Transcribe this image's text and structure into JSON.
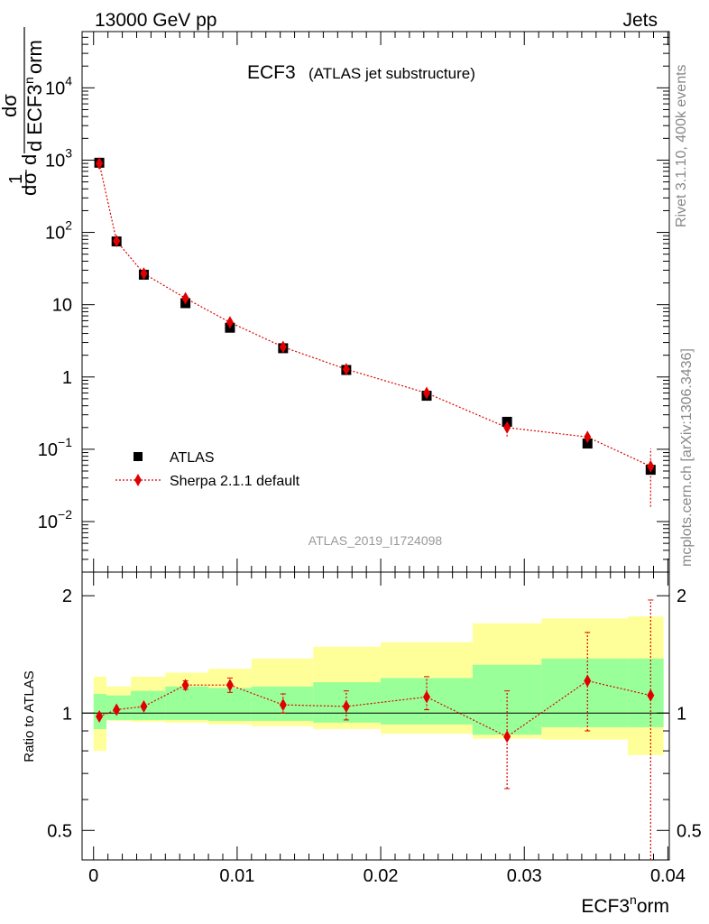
{
  "header": {
    "left": "13000 GeV pp",
    "right": "Jets"
  },
  "side": {
    "rivet": "Rivet 3.1.10,  400k events",
    "mcplots": "mcplots.cern.ch [arXiv:1306.3436]"
  },
  "chart_data": [
    {
      "type": "scatter",
      "panel": "main",
      "title": "ECF3",
      "subtitle": "(ATLAS jet substructure)",
      "watermark": "ATLAS_2019_I1724098",
      "xlabel": "ECF3^norm",
      "ylabel": "1/σ dσ/d ECF3^norm",
      "yscale": "log",
      "xlim": [
        -0.0008,
        0.0401
      ],
      "ylim": [
        0.002,
        60000
      ],
      "y_ticks": [
        {
          "v": 0.01,
          "base": "10",
          "exp": "−2"
        },
        {
          "v": 0.1,
          "base": "10",
          "exp": "−1"
        },
        {
          "v": 1,
          "base": "1",
          "exp": ""
        },
        {
          "v": 10,
          "base": "10",
          "exp": ""
        },
        {
          "v": 100,
          "base": "10",
          "exp": "2"
        },
        {
          "v": 1000,
          "base": "10",
          "exp": "3"
        },
        {
          "v": 10000,
          "base": "10",
          "exp": "4"
        }
      ],
      "legend_position": "lower-left",
      "series": [
        {
          "name": "ATLAS",
          "color": "#000000",
          "marker": "square",
          "x": [
            0.0004,
            0.0016,
            0.0035,
            0.0064,
            0.0095,
            0.0132,
            0.0176,
            0.0232,
            0.0288,
            0.0344,
            0.0388
          ],
          "y": [
            920,
            75,
            26,
            10.5,
            4.8,
            2.5,
            1.25,
            0.55,
            0.24,
            0.12,
            0.052
          ]
        },
        {
          "name": "Sherpa 2.1.1 default",
          "color": "#e00000",
          "marker": "diamond",
          "line": "dotted",
          "x": [
            0.0004,
            0.0016,
            0.0035,
            0.0064,
            0.0095,
            0.0132,
            0.0176,
            0.0232,
            0.0288,
            0.0344,
            0.0388
          ],
          "y": [
            900,
            76,
            27,
            12.3,
            5.7,
            2.6,
            1.28,
            0.6,
            0.2,
            0.148,
            0.058
          ],
          "y_err_low": [
            0,
            0,
            0,
            0,
            0,
            0,
            0,
            0,
            0.05,
            0.03,
            0.042
          ],
          "y_err_high": [
            0,
            0,
            0,
            0,
            0,
            0,
            0,
            0,
            0.04,
            0.035,
            0.045
          ]
        }
      ]
    },
    {
      "type": "line",
      "panel": "ratio",
      "xlabel": "ECF3^norm",
      "ylabel": "Ratio to ATLAS",
      "xlim": [
        -0.0008,
        0.0401
      ],
      "ylim": [
        0.42,
        2.3
      ],
      "yscale": "log",
      "y_tick_labels": [
        {
          "v": 0.5,
          "label": "0.5"
        },
        {
          "v": 1,
          "label": "1"
        },
        {
          "v": 2,
          "label": "2"
        }
      ],
      "x_tick_labels": [
        {
          "v": 0,
          "label": "0"
        },
        {
          "v": 0.01,
          "label": "0.01"
        },
        {
          "v": 0.02,
          "label": "0.02"
        },
        {
          "v": 0.03,
          "label": "0.03"
        },
        {
          "v": 0.04,
          "label": "0.04"
        }
      ],
      "bands": {
        "edges": [
          0,
          0.0009,
          0.0026,
          0.005,
          0.008,
          0.011,
          0.0153,
          0.02,
          0.0264,
          0.0312,
          0.0372,
          0.0397
        ],
        "inner_low": [
          0.91,
          0.96,
          0.96,
          0.96,
          0.955,
          0.955,
          0.945,
          0.935,
          0.88,
          0.92,
          0.92
        ],
        "inner_high": [
          1.12,
          1.11,
          1.14,
          1.17,
          1.16,
          1.17,
          1.2,
          1.23,
          1.33,
          1.38,
          1.38
        ],
        "outer_low": [
          0.8,
          0.955,
          0.95,
          0.945,
          0.935,
          0.925,
          0.91,
          0.885,
          0.86,
          0.855,
          0.78
        ],
        "outer_high": [
          1.24,
          1.17,
          1.24,
          1.27,
          1.3,
          1.38,
          1.48,
          1.52,
          1.7,
          1.75,
          1.77
        ],
        "inner_color": "#99ff99",
        "outer_color": "#ffff99"
      },
      "series": [
        {
          "name": "Sherpa 2.1.1 default",
          "color": "#e00000",
          "x": [
            0.0004,
            0.0016,
            0.0035,
            0.0064,
            0.0095,
            0.0132,
            0.0176,
            0.0232,
            0.0288,
            0.0344,
            0.0388
          ],
          "y": [
            0.98,
            1.02,
            1.04,
            1.18,
            1.18,
            1.05,
            1.04,
            1.1,
            0.87,
            1.21,
            1.11
          ],
          "y_err_low": [
            0.0,
            0.0,
            0.0,
            0.03,
            0.05,
            0.05,
            0.08,
            0.08,
            0.23,
            0.31,
            0.71
          ],
          "y_err_high": [
            0.0,
            0.0,
            0.0,
            0.03,
            0.05,
            0.07,
            0.1,
            0.14,
            0.27,
            0.4,
            0.84
          ]
        }
      ]
    }
  ]
}
